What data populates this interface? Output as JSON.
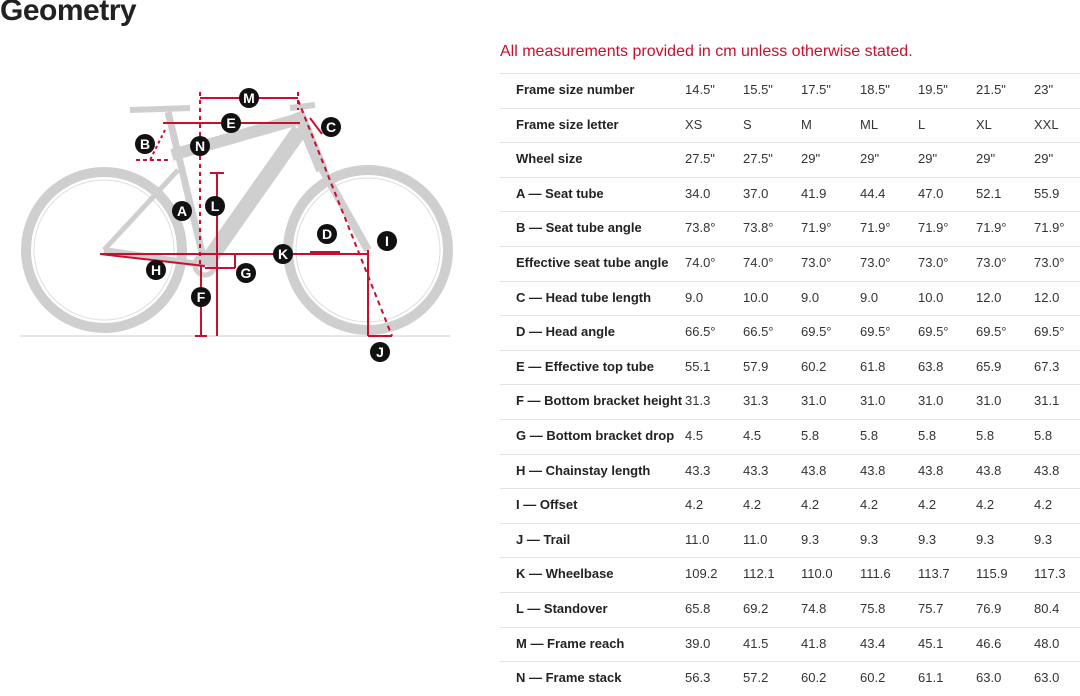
{
  "title": "Geometry",
  "note": "All measurements provided in cm unless otherwise stated.",
  "diagram": {
    "labels": [
      "M",
      "E",
      "C",
      "B",
      "N",
      "A",
      "L",
      "D",
      "I",
      "K",
      "H",
      "G",
      "F",
      "J"
    ]
  },
  "table": {
    "rows": [
      [
        "Frame size number",
        "14.5\"",
        "15.5\"",
        "17.5\"",
        "18.5\"",
        "19.5\"",
        "21.5\"",
        "23\""
      ],
      [
        "Frame size letter",
        "XS",
        "S",
        "M",
        "ML",
        "L",
        "XL",
        "XXL"
      ],
      [
        "Wheel size",
        "27.5\"",
        "27.5\"",
        "29\"",
        "29\"",
        "29\"",
        "29\"",
        "29\""
      ],
      [
        "A — Seat tube",
        "34.0",
        "37.0",
        "41.9",
        "44.4",
        "47.0",
        "52.1",
        "55.9"
      ],
      [
        "B — Seat tube angle",
        "73.8°",
        "73.8°",
        "71.9°",
        "71.9°",
        "71.9°",
        "71.9°",
        "71.9°"
      ],
      [
        "Effective seat tube angle",
        "74.0°",
        "74.0°",
        "73.0°",
        "73.0°",
        "73.0°",
        "73.0°",
        "73.0°"
      ],
      [
        "C — Head tube length",
        "9.0",
        "10.0",
        "9.0",
        "9.0",
        "10.0",
        "12.0",
        "12.0"
      ],
      [
        "D — Head angle",
        "66.5°",
        "66.5°",
        "69.5°",
        "69.5°",
        "69.5°",
        "69.5°",
        "69.5°"
      ],
      [
        "E — Effective top tube",
        "55.1",
        "57.9",
        "60.2",
        "61.8",
        "63.8",
        "65.9",
        "67.3"
      ],
      [
        "F — Bottom bracket height",
        "31.3",
        "31.3",
        "31.0",
        "31.0",
        "31.0",
        "31.0",
        "31.1"
      ],
      [
        "G — Bottom bracket drop",
        "4.5",
        "4.5",
        "5.8",
        "5.8",
        "5.8",
        "5.8",
        "5.8"
      ],
      [
        "H — Chainstay length",
        "43.3",
        "43.3",
        "43.8",
        "43.8",
        "43.8",
        "43.8",
        "43.8"
      ],
      [
        "I — Offset",
        "4.2",
        "4.2",
        "4.2",
        "4.2",
        "4.2",
        "4.2",
        "4.2"
      ],
      [
        "J — Trail",
        "11.0",
        "11.0",
        "9.3",
        "9.3",
        "9.3",
        "9.3",
        "9.3"
      ],
      [
        "K — Wheelbase",
        "109.2",
        "112.1",
        "110.0",
        "111.6",
        "113.7",
        "115.9",
        "117.3"
      ],
      [
        "L — Standover",
        "65.8",
        "69.2",
        "74.8",
        "75.8",
        "75.7",
        "76.9",
        "80.4"
      ],
      [
        "M — Frame reach",
        "39.0",
        "41.5",
        "41.8",
        "43.4",
        "45.1",
        "46.6",
        "48.0"
      ],
      [
        "N — Frame stack",
        "56.3",
        "57.2",
        "60.2",
        "60.2",
        "61.1",
        "63.0",
        "63.0"
      ]
    ]
  }
}
